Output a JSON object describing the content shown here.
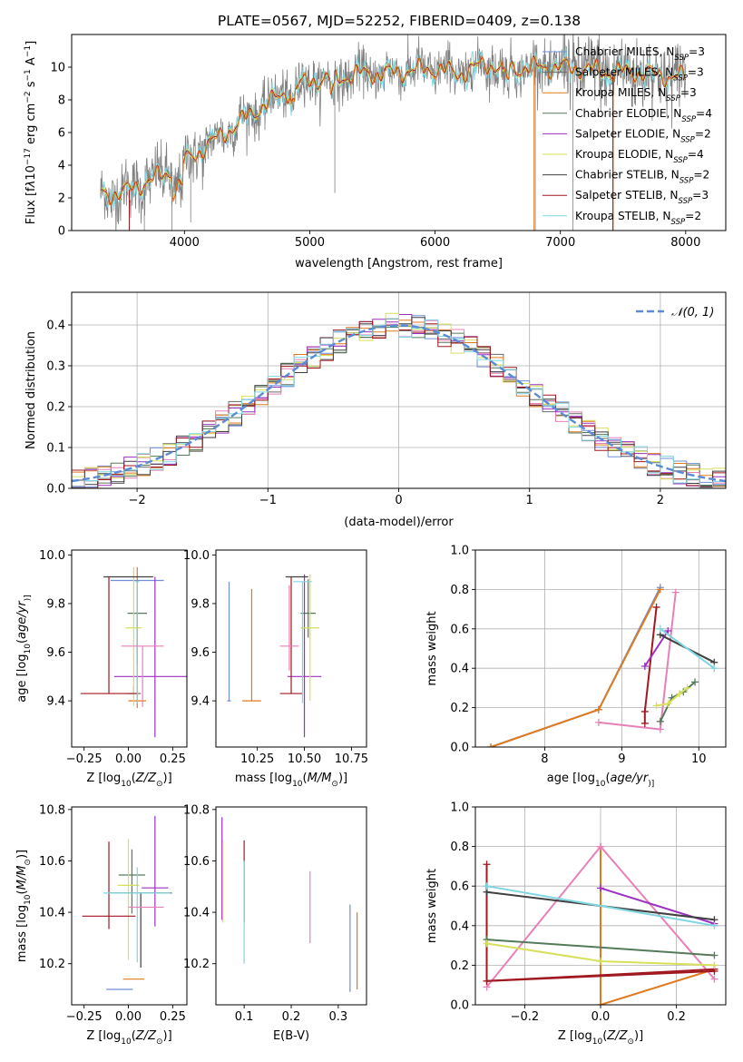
{
  "title": "PLATE=0567, MJD=52252, FIBERID=0409, z=0.138",
  "colors": {
    "Chabrier MILES": "#6e8fd8",
    "Salpeter MILES": "#6b6b6b",
    "Kroupa MILES": "#e07a1f",
    "Chabrier ELODIE": "#557a5a",
    "Salpeter ELODIE": "#9b30c0",
    "Kroupa ELODIE": "#d6e05a",
    "Chabrier STELIB": "#404040",
    "Salpeter STELIB": "#a01820",
    "Kroupa STELIB": "#7fd6e0",
    "pink": "#e880b8",
    "gaussian": "#5b8bd6",
    "grid": "#b0b0b0"
  },
  "legend_spectrum": [
    {
      "model": "Chabrier MILES",
      "label": "Chabrier MILES, N",
      "sub": "SSP",
      "n": "=3"
    },
    {
      "model": "Salpeter MILES",
      "label": "Salpeter MILES, N",
      "sub": "SSP",
      "n": "=3"
    },
    {
      "model": "Kroupa MILES",
      "label": "Kroupa MILES, N",
      "sub": "SSP",
      "n": "=3"
    },
    {
      "model": "Chabrier ELODIE",
      "label": "Chabrier ELODIE, N",
      "sub": "SSP",
      "n": "=4"
    },
    {
      "model": "Salpeter ELODIE",
      "label": "Salpeter ELODIE, N",
      "sub": "SSP",
      "n": "=2"
    },
    {
      "model": "Kroupa ELODIE",
      "label": "Kroupa ELODIE, N",
      "sub": "SSP",
      "n": "=4"
    },
    {
      "model": "Chabrier STELIB",
      "label": "Chabrier STELIB, N",
      "sub": "SSP",
      "n": "=2"
    },
    {
      "model": "Salpeter STELIB",
      "label": "Salpeter STELIB, N",
      "sub": "SSP",
      "n": "=3"
    },
    {
      "model": "Kroupa STELIB",
      "label": "Kroupa STELIB, N",
      "sub": "SSP",
      "n": "=2"
    }
  ],
  "chart_data": [
    {
      "id": "spectrum",
      "type": "line",
      "xlabel": "wavelength [Angstrom, rest frame]",
      "ylabel_parts": [
        "Flux [f",
        "λ",
        "10",
        "−17",
        " erg cm",
        "−2",
        " s",
        "−1",
        " A",
        "−1",
        "]"
      ],
      "xlim": [
        3100,
        8320
      ],
      "ylim": [
        0,
        12
      ],
      "xticks": [
        4000,
        5000,
        6000,
        7000,
        8000
      ],
      "yticks": [
        0,
        2,
        4,
        6,
        8,
        10
      ],
      "data_range": [
        3330,
        8000
      ],
      "continuum": [
        [
          3330,
          2.2
        ],
        [
          3500,
          2.3
        ],
        [
          3700,
          3.0
        ],
        [
          3900,
          3.6
        ],
        [
          4000,
          4.2
        ],
        [
          4200,
          5.3
        ],
        [
          4400,
          6.4
        ],
        [
          4600,
          7.5
        ],
        [
          4800,
          8.4
        ],
        [
          5000,
          9.2
        ],
        [
          5200,
          9.3
        ],
        [
          5400,
          9.6
        ],
        [
          5600,
          9.6
        ],
        [
          5800,
          9.8
        ],
        [
          6000,
          9.9
        ],
        [
          6200,
          9.6
        ],
        [
          6400,
          10.2
        ],
        [
          6600,
          9.9
        ],
        [
          6800,
          10.0
        ],
        [
          7000,
          10.0
        ],
        [
          7200,
          9.9
        ],
        [
          7400,
          9.7
        ],
        [
          7600,
          9.7
        ],
        [
          7800,
          9.5
        ],
        [
          8000,
          9.4
        ]
      ]
    },
    {
      "id": "residuals",
      "type": "step",
      "xlabel": "(data-model)/error",
      "ylabel": "Normed distribution",
      "xlim": [
        -2.5,
        2.5
      ],
      "ylim": [
        0,
        0.48
      ],
      "xticks": [
        -2,
        -1,
        0,
        1,
        2
      ],
      "yticks": [
        0.0,
        0.1,
        0.2,
        0.3,
        0.4
      ],
      "bin_width": 0.1,
      "reference": {
        "name": "𝒩(0, 1)",
        "mean": 0,
        "sigma": 1
      }
    },
    {
      "id": "age-vs-Z",
      "type": "errorbar",
      "xlabel_parts": [
        "Z [log",
        "10",
        "(",
        "Z/Z",
        "⊙",
        ")]"
      ],
      "ylabel_parts": [
        "age  [log",
        "10",
        "(",
        "age/yr",
        ")]"
      ],
      "xlim": [
        -0.32,
        0.33
      ],
      "ylim": [
        9.21,
        10.02
      ],
      "xticks": [
        -0.25,
        0.0,
        0.25
      ],
      "yticks": [
        9.4,
        9.6,
        9.8,
        10.0
      ],
      "points": [
        {
          "model": "Chabrier MILES",
          "x": 0.05,
          "xerr": 0.3,
          "y": 9.895,
          "yerr": [
            0.34,
            0.0
          ]
        },
        {
          "model": "Salpeter MILES",
          "x": 0.03,
          "xerr": 0.08,
          "y": 9.43,
          "yerr": [
            0.0,
            0.03
          ]
        },
        {
          "model": "Kroupa MILES",
          "x": 0.05,
          "xerr": 0.1,
          "y": 9.4,
          "yerr": [
            0.03,
            0.55
          ]
        },
        {
          "model": "Chabrier ELODIE",
          "x": 0.05,
          "xerr": 0.11,
          "y": 9.76,
          "yerr": [
            0.21,
            0.0
          ]
        },
        {
          "model": "Salpeter ELODIE",
          "x": 0.15,
          "xerr": 0.46,
          "y": 9.5,
          "yerr": [
            0.25,
            0.41
          ]
        },
        {
          "model": "Kroupa ELODIE",
          "x": 0.03,
          "xerr": 0.09,
          "y": 9.7,
          "yerr": [
            0.32,
            0.25
          ]
        },
        {
          "model": "Chabrier STELIB",
          "x": 0.0,
          "xerr": 0.28,
          "y": 9.91,
          "yerr": [
            0.0,
            0.0
          ]
        },
        {
          "model": "Salpeter STELIB",
          "x": -0.11,
          "xerr": 0.32,
          "y": 9.43,
          "yerr": [
            0.0,
            0.48
          ]
        },
        {
          "model": "Kroupa STELIB",
          "x": 0.05,
          "xerr": 0.02,
          "y": 9.89,
          "yerr": [
            0.5,
            0.0
          ]
        },
        {
          "model": "pink",
          "x": 0.08,
          "xerr": 0.24,
          "y": 9.625,
          "yerr": [
            0.25,
            0.0
          ]
        }
      ]
    },
    {
      "id": "age-vs-mass",
      "type": "errorbar",
      "xlabel_parts": [
        "mass [log",
        "10",
        "(",
        "M/M",
        "⊙",
        ")]"
      ],
      "ylabel": "",
      "xlim": [
        10.03,
        10.83
      ],
      "ylim": [
        9.21,
        10.02
      ],
      "xticks": [
        10.25,
        10.5,
        10.75
      ],
      "yticks": [
        9.4,
        9.6,
        9.8,
        10.0
      ],
      "points": [
        {
          "model": "Chabrier MILES",
          "x": 10.1,
          "xerr": 0.02,
          "y": 9.4,
          "yerr": [
            0.0,
            0.49
          ]
        },
        {
          "model": "Kroupa MILES",
          "x": 10.22,
          "xerr": 0.1,
          "y": 9.4,
          "yerr": [
            0.0,
            0.46
          ]
        },
        {
          "model": "Chabrier ELODIE",
          "x": 10.52,
          "xerr": 0.08,
          "y": 9.76,
          "yerr": [
            0.1,
            0.14
          ]
        },
        {
          "model": "Salpeter ELODIE",
          "x": 10.5,
          "xerr": 0.18,
          "y": 9.5,
          "yerr": [
            0.25,
            0.42
          ]
        },
        {
          "model": "Kroupa ELODIE",
          "x": 10.53,
          "xerr": 0.1,
          "y": 9.7,
          "yerr": [
            0.3,
            0.22
          ]
        },
        {
          "model": "Chabrier STELIB",
          "x": 10.46,
          "xerr": 0.12,
          "y": 9.91,
          "yerr": [
            0.0,
            0.0
          ]
        },
        {
          "model": "Salpeter STELIB",
          "x": 10.43,
          "xerr": 0.12,
          "y": 9.43,
          "yerr": [
            0.0,
            0.48
          ]
        },
        {
          "model": "Kroupa STELIB",
          "x": 10.49,
          "xerr": 0.1,
          "y": 9.89,
          "yerr": [
            0.5,
            0.0
          ]
        },
        {
          "model": "pink",
          "x": 10.42,
          "xerr": 0.1,
          "y": 9.625,
          "yerr": [
            0.1,
            0.25
          ]
        }
      ]
    },
    {
      "id": "weight-vs-age",
      "type": "line",
      "xlabel_parts": [
        "age  [log",
        "10",
        "(",
        "age/yr",
        ")]"
      ],
      "ylabel": "mass weight",
      "xlim": [
        7.1,
        10.35
      ],
      "ylim": [
        0,
        1.0
      ],
      "xticks": [
        8,
        9,
        10
      ],
      "yticks": [
        0.0,
        0.2,
        0.4,
        0.6,
        0.8,
        1.0
      ],
      "series": [
        {
          "model": "Chabrier MILES",
          "x": [
            7.3,
            8.7,
            9.5
          ],
          "y": [
            0.0,
            0.19,
            0.81
          ]
        },
        {
          "model": "Kroupa MILES",
          "x": [
            7.3,
            8.7,
            9.5
          ],
          "y": [
            0.0,
            0.19,
            0.8
          ]
        },
        {
          "model": "pink",
          "x": [
            8.7,
            9.5,
            9.7
          ],
          "y": [
            0.125,
            0.09,
            0.785
          ]
        },
        {
          "model": "Salpeter STELIB",
          "x": [
            9.3,
            9.3,
            9.45
          ],
          "y": [
            0.12,
            0.18,
            0.71
          ]
        },
        {
          "model": "Salpeter ELODIE",
          "x": [
            9.3,
            9.6
          ],
          "y": [
            0.41,
            0.59
          ]
        },
        {
          "model": "Chabrier STELIB",
          "x": [
            9.5,
            10.2
          ],
          "y": [
            0.57,
            0.43
          ]
        },
        {
          "model": "Kroupa STELIB",
          "x": [
            9.5,
            10.2
          ],
          "y": [
            0.6,
            0.4
          ]
        },
        {
          "model": "Chabrier ELODIE",
          "x": [
            9.5,
            9.65,
            9.8,
            9.95
          ],
          "y": [
            0.13,
            0.25,
            0.28,
            0.33
          ]
        },
        {
          "model": "Kroupa ELODIE",
          "x": [
            9.45,
            9.6,
            9.75,
            9.85
          ],
          "y": [
            0.21,
            0.22,
            0.27,
            0.3
          ]
        }
      ]
    },
    {
      "id": "mass-vs-Z",
      "type": "errorbar",
      "xlabel_parts": [
        "Z [log",
        "10",
        "(",
        "Z/Z",
        "⊙",
        ")]"
      ],
      "ylabel_parts": [
        "mass [log",
        "10",
        "(",
        "M/M",
        "⊙",
        ")]"
      ],
      "xlim": [
        -0.32,
        0.33
      ],
      "ylim": [
        10.04,
        10.81
      ],
      "xticks": [
        -0.25,
        0.0,
        0.25
      ],
      "yticks": [
        10.2,
        10.4,
        10.6,
        10.8
      ],
      "points": [
        {
          "model": "Chabrier MILES",
          "x": -0.05,
          "xerr": 0.15,
          "y": 10.1,
          "yerr": [
            0.0,
            0.0
          ]
        },
        {
          "model": "Kroupa MILES",
          "x": 0.03,
          "xerr": 0.12,
          "y": 10.14,
          "yerr": [
            0.0,
            0.0
          ]
        },
        {
          "model": "Chabrier ELODIE",
          "x": 0.02,
          "xerr": 0.15,
          "y": 10.545,
          "yerr": [
            0.15,
            0.1
          ]
        },
        {
          "model": "Salpeter ELODIE",
          "x": 0.15,
          "xerr": 0.15,
          "y": 10.495,
          "yerr": [
            0.15,
            0.28
          ]
        },
        {
          "model": "Kroupa ELODIE",
          "x": 0.0,
          "xerr": 0.12,
          "y": 10.505,
          "yerr": [
            0.29,
            0.18
          ]
        },
        {
          "model": "Chabrier STELIB",
          "x": 0.07,
          "xerr": 0.35,
          "y": 10.475,
          "yerr": [
            0.29,
            0.0
          ]
        },
        {
          "model": "Salpeter STELIB",
          "x": -0.11,
          "xerr": 0.3,
          "y": 10.385,
          "yerr": [
            0.05,
            0.29
          ]
        },
        {
          "model": "Kroupa STELIB",
          "x": 0.05,
          "xerr": 0.38,
          "y": 10.475,
          "yerr": [
            0.27,
            0.1
          ]
        },
        {
          "model": "pink",
          "x": 0.1,
          "xerr": 0.2,
          "y": 10.42,
          "yerr": [
            0.0,
            0.0
          ]
        }
      ]
    },
    {
      "id": "mass-vs-ebv",
      "type": "errorbar",
      "xlabel": "E(B-V)",
      "xlim": [
        0.04,
        0.36
      ],
      "ylim": [
        10.04,
        10.81
      ],
      "xticks": [
        0.1,
        0.2,
        0.3
      ],
      "yticks": [
        10.2,
        10.4,
        10.6,
        10.8
      ],
      "points": [
        {
          "model": "Chabrier MILES",
          "x": 0.325,
          "y": 10.26,
          "yerr": [
            0.17,
            0.17
          ]
        },
        {
          "model": "Kroupa MILES",
          "x": 0.34,
          "y": 10.25,
          "yerr": [
            0.15,
            0.15
          ]
        },
        {
          "model": "Salpeter ELODIE",
          "x": 0.053,
          "y": 10.57,
          "yerr": [
            0.2,
            0.2
          ]
        },
        {
          "model": "Kroupa ELODIE",
          "x": 0.055,
          "y": 10.52,
          "yerr": [
            0.16,
            0.16
          ]
        },
        {
          "model": "Salpeter STELIB",
          "x": 0.1,
          "y": 10.52,
          "yerr": [
            0.16,
            0.16
          ]
        },
        {
          "model": "Kroupa STELIB",
          "x": 0.1,
          "y": 10.4,
          "yerr": [
            0.2,
            0.2
          ]
        },
        {
          "model": "pink",
          "x": 0.24,
          "y": 10.42,
          "yerr": [
            0.14,
            0.14
          ]
        }
      ]
    },
    {
      "id": "weight-vs-Z",
      "type": "line",
      "xlabel_parts": [
        "Z [log",
        "10",
        "(",
        "Z/Z",
        "⊙",
        ")]"
      ],
      "ylabel": "mass weight",
      "xlim": [
        -0.33,
        0.33
      ],
      "ylim": [
        0,
        1.0
      ],
      "xticks": [
        -0.2,
        0.0,
        0.2
      ],
      "yticks": [
        0.0,
        0.2,
        0.4,
        0.6,
        0.8,
        1.0
      ],
      "series": [
        {
          "model": "Kroupa MILES",
          "x": [
            0.0,
            0.0,
            0.3
          ],
          "y": [
            0.8,
            0.0,
            0.18
          ]
        },
        {
          "model": "pink",
          "x": [
            -0.3,
            0.0,
            0.3
          ],
          "y": [
            0.09,
            0.8,
            0.13
          ]
        },
        {
          "model": "Salpeter STELIB",
          "x": [
            -0.3,
            -0.3,
            0.3
          ],
          "y": [
            0.71,
            0.12,
            0.17
          ]
        },
        {
          "model": "Salpeter STELIB",
          "x": [
            -0.3,
            0.3
          ],
          "y": [
            0.12,
            0.18
          ]
        },
        {
          "model": "Salpeter ELODIE",
          "x": [
            0.0,
            0.3
          ],
          "y": [
            0.59,
            0.41
          ]
        },
        {
          "model": "Chabrier STELIB",
          "x": [
            -0.3,
            0.3
          ],
          "y": [
            0.57,
            0.43
          ]
        },
        {
          "model": "Kroupa STELIB",
          "x": [
            -0.3,
            0.3
          ],
          "y": [
            0.6,
            0.4
          ]
        },
        {
          "model": "Chabrier ELODIE",
          "x": [
            -0.3,
            0.3
          ],
          "y": [
            0.33,
            0.25
          ]
        },
        {
          "model": "Kroupa ELODIE",
          "x": [
            -0.3,
            0.0,
            0.3
          ],
          "y": [
            0.31,
            0.22,
            0.2
          ]
        }
      ]
    }
  ]
}
